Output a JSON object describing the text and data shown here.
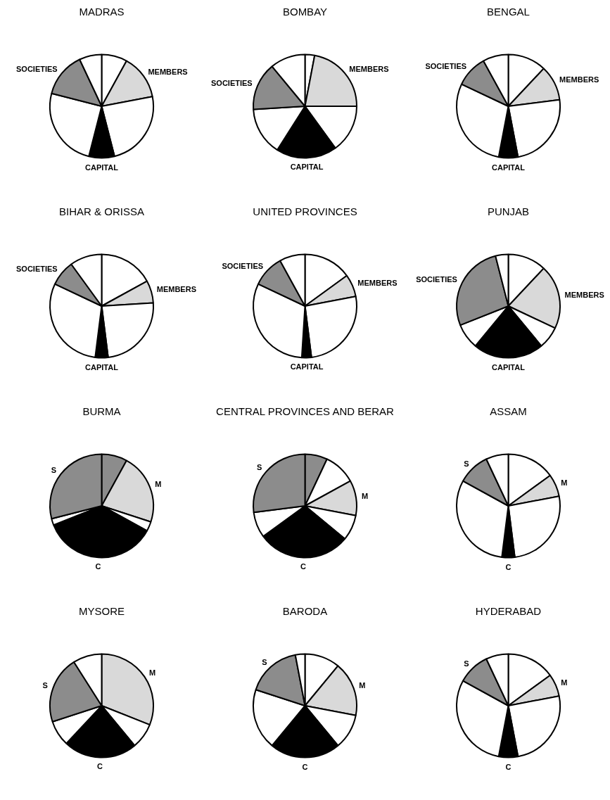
{
  "chart_data": [
    {
      "type": "pie",
      "title": "MADRAS",
      "categories": [
        null,
        "MEMBERS",
        null,
        "CAPITAL",
        null,
        "SOCIETIES",
        null
      ],
      "values": [
        8,
        14,
        24,
        8,
        25,
        14,
        7
      ],
      "colors": [
        "#ffffff",
        "#d9d9d9",
        "#ffffff",
        "#000000",
        "#ffffff",
        "#8c8c8c",
        "#ffffff"
      ]
    },
    {
      "type": "pie",
      "title": "BOMBAY",
      "categories": [
        null,
        "MEMBERS",
        null,
        "CAPITAL",
        null,
        "SOCIETIES",
        null
      ],
      "values": [
        3,
        22,
        15,
        19,
        15,
        15,
        11
      ],
      "colors": [
        "#ffffff",
        "#d9d9d9",
        "#ffffff",
        "#000000",
        "#ffffff",
        "#8c8c8c",
        "#ffffff"
      ]
    },
    {
      "type": "pie",
      "title": "BENGAL",
      "categories": [
        null,
        "MEMBERS",
        null,
        "CAPITAL",
        null,
        "SOCIETIES",
        null
      ],
      "values": [
        12,
        11,
        24,
        6,
        29,
        10,
        8
      ],
      "colors": [
        "#ffffff",
        "#d9d9d9",
        "#ffffff",
        "#000000",
        "#ffffff",
        "#8c8c8c",
        "#ffffff"
      ]
    },
    {
      "type": "pie",
      "title": "BIHAR & ORISSA",
      "categories": [
        null,
        "MEMBERS",
        null,
        "CAPITAL",
        null,
        "SOCIETIES",
        null
      ],
      "values": [
        17,
        7,
        24,
        4,
        30,
        8,
        10
      ],
      "colors": [
        "#ffffff",
        "#d9d9d9",
        "#ffffff",
        "#000000",
        "#ffffff",
        "#8c8c8c",
        "#ffffff"
      ]
    },
    {
      "type": "pie",
      "title": "UNITED PROVINCES",
      "categories": [
        null,
        "MEMBERS",
        null,
        "CAPITAL",
        null,
        "SOCIETIES",
        null
      ],
      "values": [
        15,
        7,
        26,
        3,
        31,
        10,
        8
      ],
      "colors": [
        "#ffffff",
        "#d9d9d9",
        "#ffffff",
        "#000000",
        "#ffffff",
        "#8c8c8c",
        "#ffffff"
      ]
    },
    {
      "type": "pie",
      "title": "PUNJAB",
      "categories": [
        null,
        "MEMBERS",
        null,
        "CAPITAL",
        null,
        "SOCIETIES",
        null
      ],
      "values": [
        12,
        20,
        7,
        22,
        8,
        27,
        4
      ],
      "colors": [
        "#ffffff",
        "#d9d9d9",
        "#ffffff",
        "#000000",
        "#ffffff",
        "#8c8c8c",
        "#ffffff"
      ]
    },
    {
      "type": "pie",
      "title": "BURMA",
      "categories": [
        null,
        "M",
        null,
        "C",
        null,
        "S"
      ],
      "values": [
        8,
        22,
        3,
        36,
        2,
        29
      ],
      "colors": [
        "#8c8c8c",
        "#d9d9d9",
        "#ffffff",
        "#000000",
        "#ffffff",
        "#8c8c8c"
      ]
    },
    {
      "type": "pie",
      "title": "CENTRAL PROVINCES AND BERAR",
      "categories": [
        null,
        null,
        "M",
        null,
        "C",
        null,
        "S"
      ],
      "values": [
        7,
        10,
        11,
        8,
        29,
        8,
        27
      ],
      "colors": [
        "#8c8c8c",
        "#ffffff",
        "#d9d9d9",
        "#ffffff",
        "#000000",
        "#ffffff",
        "#8c8c8c"
      ]
    },
    {
      "type": "pie",
      "title": "ASSAM",
      "categories": [
        null,
        "M",
        null,
        "C",
        null,
        "S",
        null
      ],
      "values": [
        15,
        7,
        26,
        4,
        31,
        10,
        7
      ],
      "colors": [
        "#ffffff",
        "#d9d9d9",
        "#ffffff",
        "#000000",
        "#ffffff",
        "#8c8c8c",
        "#ffffff"
      ]
    },
    {
      "type": "pie",
      "title": "MYSORE",
      "categories": [
        "M",
        null,
        "C",
        null,
        "S",
        null
      ],
      "values": [
        31,
        8,
        23,
        8,
        21,
        9
      ],
      "colors": [
        "#d9d9d9",
        "#ffffff",
        "#000000",
        "#ffffff",
        "#8c8c8c",
        "#ffffff"
      ]
    },
    {
      "type": "pie",
      "title": "BARODA",
      "categories": [
        null,
        "M",
        null,
        "C",
        null,
        "S",
        null
      ],
      "values": [
        11,
        17,
        11,
        22,
        19,
        17,
        3
      ],
      "colors": [
        "#ffffff",
        "#d9d9d9",
        "#ffffff",
        "#000000",
        "#ffffff",
        "#8c8c8c",
        "#ffffff"
      ]
    },
    {
      "type": "pie",
      "title": "HYDERABAD",
      "categories": [
        null,
        "M",
        null,
        "C",
        null,
        "S",
        null
      ],
      "values": [
        15,
        7,
        25,
        6,
        30,
        10,
        7
      ],
      "colors": [
        "#ffffff",
        "#d9d9d9",
        "#ffffff",
        "#000000",
        "#ffffff",
        "#8c8c8c",
        "#ffffff"
      ]
    }
  ]
}
